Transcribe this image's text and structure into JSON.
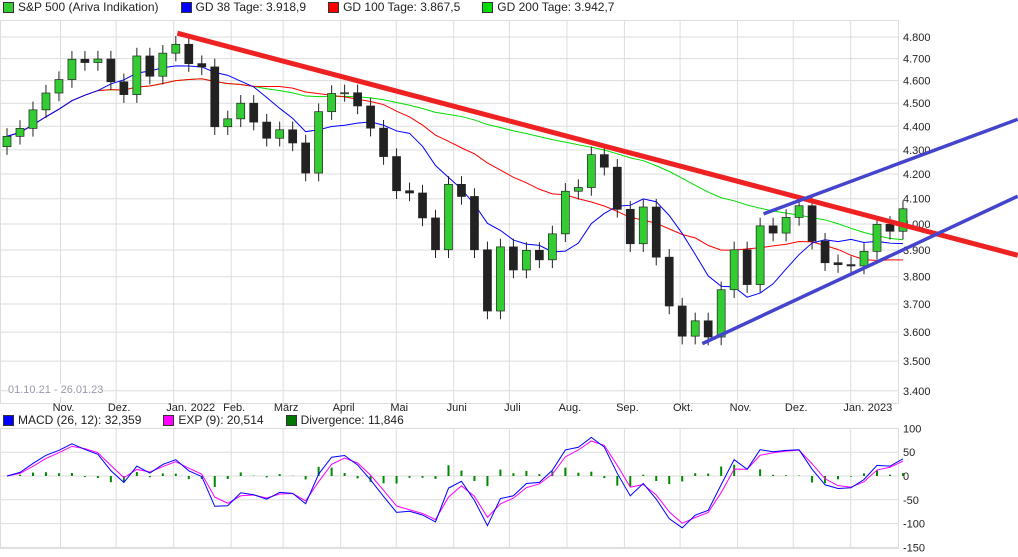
{
  "legend_main": [
    {
      "label": "S&P 500 (Ariva Indikation)",
      "color": "#33cc33"
    },
    {
      "label": "GD 38 Tage: 3.918,9",
      "color": "#0000ff"
    },
    {
      "label": "GD 100 Tage: 3.867,5",
      "color": "#ff0000"
    },
    {
      "label": "GD 200 Tage: 3.942,7",
      "color": "#00dd00"
    }
  ],
  "legend_macd": [
    {
      "label": "MACD (26, 12): 32,359",
      "color": "#0000ff"
    },
    {
      "label": "EXP (9): 20,514",
      "color": "#ff00ff"
    },
    {
      "label": "Divergence: 11,846",
      "color": "#007700"
    }
  ],
  "date_range": "01.10.21 - 26.01.23",
  "chart_data": [
    {
      "type": "candlestick",
      "scale": "log",
      "ylim": [
        3400,
        4850
      ],
      "yticks": [
        "4.800",
        "4.700",
        "4.600",
        "4.500",
        "4.400",
        "4.300",
        "4.200",
        "4.100",
        "4.000",
        "3.900",
        "3.800",
        "3.700",
        "3.600",
        "3.500",
        "3.400"
      ],
      "ytick_values": [
        4800,
        4700,
        4600,
        4500,
        4400,
        4300,
        4200,
        4100,
        4000,
        3900,
        3800,
        3700,
        3600,
        3500,
        3400
      ],
      "xticks": [
        {
          "label": "Nov.",
          "date": "2021-11-01"
        },
        {
          "label": "Dez.",
          "date": "2021-12-01"
        },
        {
          "label": "Jan.",
          "sub": "2022",
          "date": "2022-01-01"
        },
        {
          "label": "Feb.",
          "date": "2022-02-01"
        },
        {
          "label": "März",
          "date": "2022-03-01"
        },
        {
          "label": "April",
          "date": "2022-04-01"
        },
        {
          "label": "Mai",
          "date": "2022-05-01"
        },
        {
          "label": "Juni",
          "date": "2022-06-01"
        },
        {
          "label": "Juli",
          "date": "2022-07-01"
        },
        {
          "label": "Aug.",
          "date": "2022-08-01"
        },
        {
          "label": "Sep.",
          "date": "2022-09-01"
        },
        {
          "label": "Okt.",
          "date": "2022-10-01"
        },
        {
          "label": "Nov.",
          "date": "2022-11-01"
        },
        {
          "label": "Dez.",
          "date": "2022-12-01"
        },
        {
          "label": "Jan.",
          "sub": "2023",
          "date": "2023-01-01"
        }
      ],
      "start_date": "2021-10-01",
      "weekly_close": [
        4357,
        4391,
        4471,
        4545,
        4605,
        4697,
        4682,
        4698,
        4595,
        4538,
        4712,
        4620,
        4725,
        4766,
        4677,
        4662,
        4398,
        4432,
        4500,
        4418,
        4349,
        4385,
        4329,
        4204,
        4463,
        4543,
        4546,
        4488,
        4392,
        4272,
        4132,
        4123,
        4024,
        3901,
        4158,
        4109,
        3901,
        3675,
        3912,
        3825,
        3899,
        3863,
        3962,
        4130,
        4145,
        4280,
        4228,
        4058,
        3924,
        4067,
        3873,
        3693,
        3586,
        3640,
        3583,
        3752,
        3901,
        3771,
        3993,
        3965,
        4026,
        4072,
        3934,
        3852,
        3845,
        3840,
        3895,
        3999,
        3972,
        4060
      ],
      "trendlines": [
        {
          "color": "#ee2222",
          "from": {
            "date": "2022-01-03",
            "price": 4818
          },
          "to": {
            "date": "2023-04-01",
            "price": 3880
          }
        },
        {
          "color": "#4444cc",
          "from": {
            "date": "2022-11-15",
            "price": 4040
          },
          "to": {
            "date": "2023-04-01",
            "price": 4430
          }
        },
        {
          "color": "#4444cc",
          "from": {
            "date": "2022-10-13",
            "price": 3560
          },
          "to": {
            "date": "2023-04-01",
            "price": 4110
          }
        }
      ],
      "grid": true
    },
    {
      "type": "macd",
      "ylim": [
        -150,
        100
      ],
      "yticks": [
        "100",
        "50",
        "0",
        "-50",
        "-100",
        "-150"
      ],
      "ytick_values": [
        100,
        50,
        0,
        -50,
        -100,
        -150
      ],
      "grid": true
    }
  ]
}
